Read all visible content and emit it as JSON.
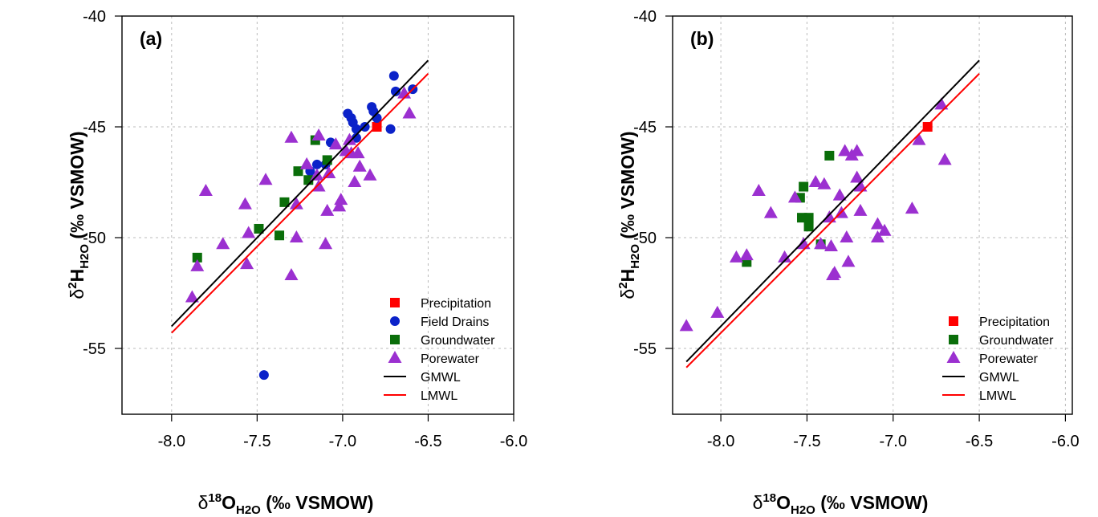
{
  "chart_data": [
    {
      "type": "scatter",
      "title": "(a)",
      "xlabel": [
        "δ",
        "18",
        "O",
        "H2O",
        " (‰ VSMOW)"
      ],
      "ylabel": [
        "δ",
        "2",
        "H",
        "H2O",
        " (‰ VSMOW)"
      ],
      "xlim": [
        -8.29,
        -6.0
      ],
      "ylim": [
        -57.97,
        -40
      ],
      "xticks": [
        {
          "value": -8,
          "label": "-8.0"
        },
        -7.5,
        {
          "value": -7,
          "label": "-7.0"
        },
        -6.5,
        {
          "value": -6,
          "label": "-6.0"
        }
      ],
      "yticks": [
        -40,
        -45,
        -50,
        -55
      ],
      "grid": true,
      "legend": "bottomright",
      "series": [
        {
          "name": "Precipitation",
          "color": "#ff0000",
          "marker": "square",
          "x": [
            -6.8
          ],
          "values": [
            -45.0
          ]
        },
        {
          "name": "Field Drains",
          "color": "#0b22c9",
          "marker": "circle",
          "x": [
            -6.7,
            -6.69,
            -6.59,
            -6.83,
            -6.82,
            -6.8,
            -6.72,
            -6.97,
            -6.95,
            -6.94,
            -6.92,
            -6.87,
            -6.92,
            -7.07,
            -7.15,
            -7.19,
            -7.1,
            -7.46
          ],
          "values": [
            -42.7,
            -43.4,
            -43.3,
            -44.1,
            -44.3,
            -44.6,
            -45.1,
            -44.4,
            -44.6,
            -44.8,
            -45.1,
            -45.0,
            -45.5,
            -45.7,
            -46.7,
            -47.0,
            -46.7,
            -56.2
          ]
        },
        {
          "name": "Groundwater",
          "color": "#0a6e0a",
          "marker": "square",
          "x": [
            -7.16,
            -7.09,
            -7.26,
            -7.2,
            -7.34,
            -7.49,
            -7.37,
            -7.85
          ],
          "values": [
            -45.6,
            -46.5,
            -47.0,
            -47.4,
            -48.4,
            -49.6,
            -49.9,
            -50.9
          ]
        },
        {
          "name": "Porewater",
          "color": "#9b30d0",
          "marker": "triangle",
          "x": [
            -7.3,
            -7.14,
            -7.04,
            -6.98,
            -6.95,
            -6.91,
            -6.96,
            -7.21,
            -7.15,
            -7.08,
            -7.14,
            -6.9,
            -6.84,
            -6.93,
            -7.45,
            -7.8,
            -7.57,
            -7.27,
            -7.01,
            -7.02,
            -7.09,
            -7.55,
            -7.7,
            -7.27,
            -7.1,
            -7.56,
            -7.85,
            -7.3,
            -7.88,
            -6.61,
            -6.64
          ],
          "values": [
            -45.5,
            -45.4,
            -45.8,
            -46.1,
            -46.2,
            -46.2,
            -45.6,
            -46.7,
            -47.2,
            -47.1,
            -47.7,
            -46.8,
            -47.2,
            -47.5,
            -47.4,
            -47.9,
            -48.5,
            -48.5,
            -48.3,
            -48.6,
            -48.8,
            -49.8,
            -50.3,
            -50.0,
            -50.3,
            -51.2,
            -51.3,
            -51.7,
            -52.7,
            -44.4,
            -43.5
          ]
        },
        {
          "name": "GMWL",
          "color": "#000000",
          "marker": "line",
          "x": [
            -8.0,
            -6.5
          ],
          "values": [
            -54.0,
            -42.0
          ]
        },
        {
          "name": "LMWL",
          "color": "#ff0000",
          "marker": "line",
          "x": [
            -8.0,
            -6.5
          ],
          "values": [
            -54.3,
            -42.6
          ]
        }
      ]
    },
    {
      "type": "scatter",
      "title": "(b)",
      "xlabel": [
        "δ",
        "18",
        "O",
        "H2O",
        " (‰ VSMOW)"
      ],
      "ylabel": [
        "δ",
        "2",
        "H",
        "H2O",
        " (‰ VSMOW)"
      ],
      "xlim": [
        -8.28,
        -5.96
      ],
      "ylim": [
        -57.97,
        -40
      ],
      "xticks": [
        {
          "value": -8,
          "label": "-8.0"
        },
        -7.5,
        {
          "value": -7,
          "label": "-7.0"
        },
        -6.5,
        {
          "value": -6,
          "label": "-6.0"
        }
      ],
      "yticks": [
        -40,
        -45,
        -50,
        -55
      ],
      "grid": true,
      "legend": "bottomright",
      "series": [
        {
          "name": "Precipitation",
          "color": "#ff0000",
          "marker": "square",
          "x": [
            -6.8
          ],
          "values": [
            -45.0
          ]
        },
        {
          "name": "Groundwater",
          "color": "#0a6e0a",
          "marker": "square",
          "x": [
            -7.37,
            -7.52,
            -7.54,
            -7.53,
            -7.49,
            -7.49,
            -7.85,
            -7.42
          ],
          "values": [
            -46.3,
            -47.7,
            -48.2,
            -49.1,
            -49.1,
            -49.5,
            -51.1,
            -50.3
          ]
        },
        {
          "name": "Porewater",
          "color": "#9b30d0",
          "marker": "triangle",
          "x": [
            -8.2,
            -8.02,
            -7.91,
            -7.85,
            -7.63,
            -7.52,
            -7.78,
            -7.71,
            -7.57,
            -7.45,
            -7.4,
            -7.37,
            -7.31,
            -7.3,
            -7.28,
            -7.24,
            -7.21,
            -7.21,
            -7.19,
            -7.19,
            -7.27,
            -7.26,
            -7.34,
            -7.35,
            -7.36,
            -7.42,
            -7.09,
            -7.09,
            -7.05,
            -6.89,
            -6.85,
            -6.72,
            -6.7
          ],
          "values": [
            -54.0,
            -53.4,
            -50.9,
            -50.8,
            -50.9,
            -50.3,
            -47.9,
            -48.9,
            -48.2,
            -47.5,
            -47.6,
            -49.1,
            -48.1,
            -48.9,
            -46.1,
            -46.3,
            -46.1,
            -47.3,
            -47.7,
            -48.8,
            -50.0,
            -51.1,
            -51.6,
            -51.7,
            -50.4,
            -50.3,
            -49.4,
            -50.0,
            -49.7,
            -48.7,
            -45.6,
            -44.0,
            -46.5
          ]
        },
        {
          "name": "GMWL",
          "color": "#000000",
          "marker": "line",
          "x": [
            -8.2,
            -6.5
          ],
          "values": [
            -55.6,
            -42.0
          ]
        },
        {
          "name": "LMWL",
          "color": "#ff0000",
          "marker": "line",
          "x": [
            -8.2,
            -6.5
          ],
          "values": [
            -55.86,
            -42.6
          ]
        }
      ]
    }
  ]
}
